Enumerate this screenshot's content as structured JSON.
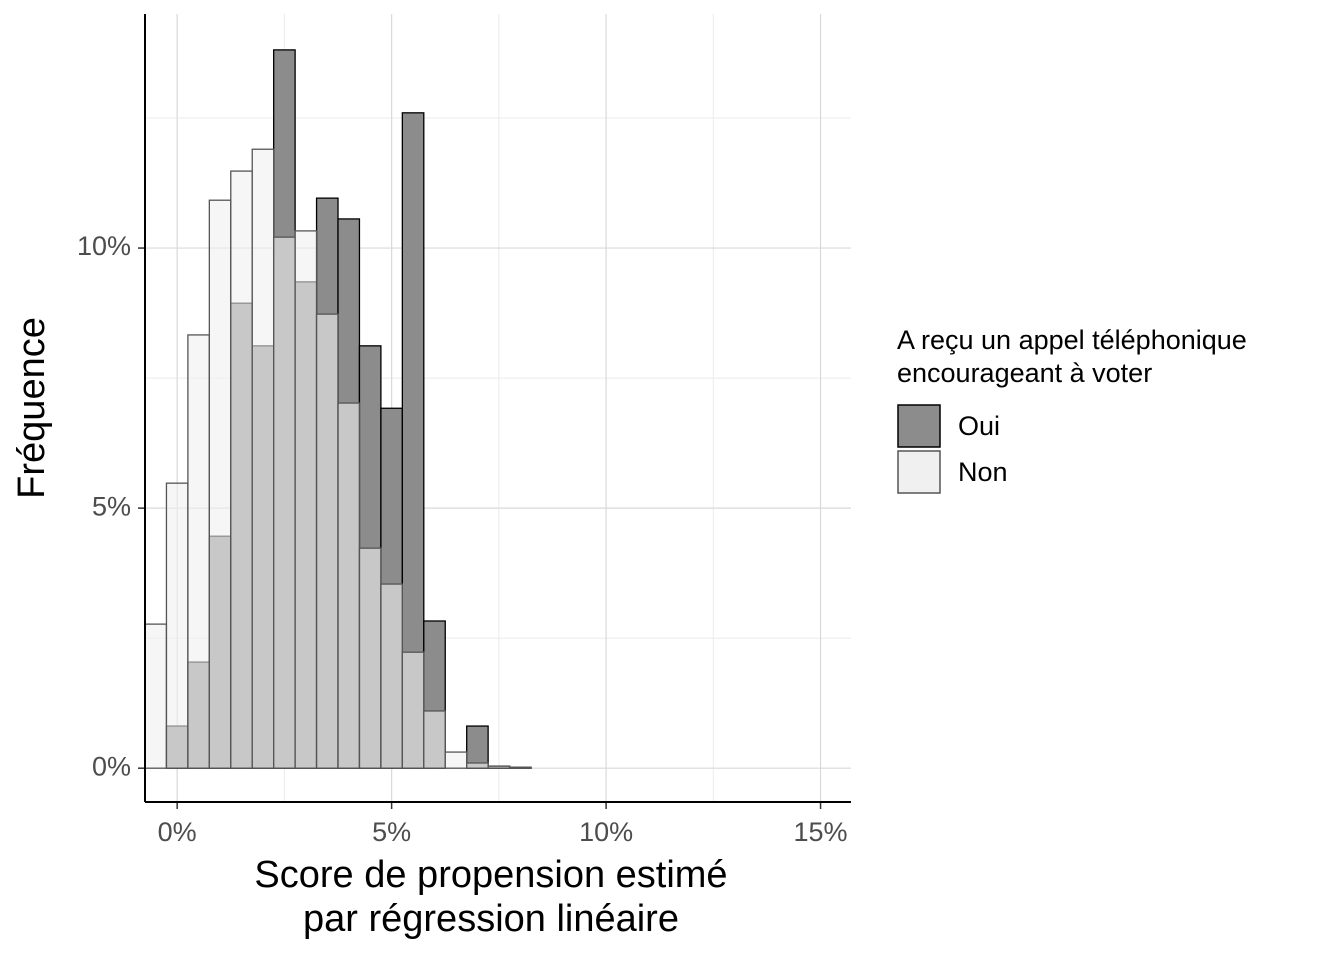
{
  "chart_data": {
    "type": "histogram",
    "xlabel": [
      "Score de propension estimé",
      "par régression linéaire"
    ],
    "ylabel": "Fréquence",
    "legend_title": [
      "A reçu un appel téléphonique",
      "encourageant à voter"
    ],
    "legend": "right",
    "grid": true,
    "bins": [
      -0.75,
      -0.25,
      0.25,
      0.75,
      1.25,
      1.75,
      2.25,
      2.75,
      3.25,
      3.75,
      4.25,
      4.75,
      5.25,
      5.75,
      6.25,
      6.75,
      7.25,
      7.75,
      8.25
    ],
    "series": [
      {
        "name": "Oui",
        "color": "#8c8c8c",
        "values": [
          0,
          0.81,
          2.04,
          4.46,
          8.94,
          8.12,
          13.81,
          9.35,
          10.96,
          10.56,
          8.12,
          6.92,
          12.6,
          2.83,
          0,
          0.81,
          0.04,
          0.02
        ]
      },
      {
        "name": "Non",
        "color": "#f0f0f0",
        "values": [
          2.77,
          5.48,
          8.33,
          10.92,
          11.48,
          11.9,
          10.21,
          10.33,
          8.73,
          7.02,
          4.23,
          3.54,
          2.23,
          1.1,
          0.31,
          0.1,
          0.04,
          0.02
        ]
      }
    ],
    "xlim": [
      -0.75,
      15.71
    ],
    "ylim": [
      -0.65,
      14.5
    ],
    "xticks": [
      {
        "value": 0,
        "label": "0%"
      },
      {
        "value": 5,
        "label": "5%"
      },
      {
        "value": 10,
        "label": "10%"
      },
      {
        "value": 15,
        "label": "15%"
      }
    ],
    "yticks": [
      {
        "value": 0,
        "label": "0%"
      },
      {
        "value": 5,
        "label": "5%"
      },
      {
        "value": 10,
        "label": "10%"
      }
    ],
    "xminor": [
      2.5,
      7.5,
      12.5
    ],
    "yminor": [
      2.5,
      7.5,
      12.5
    ]
  }
}
